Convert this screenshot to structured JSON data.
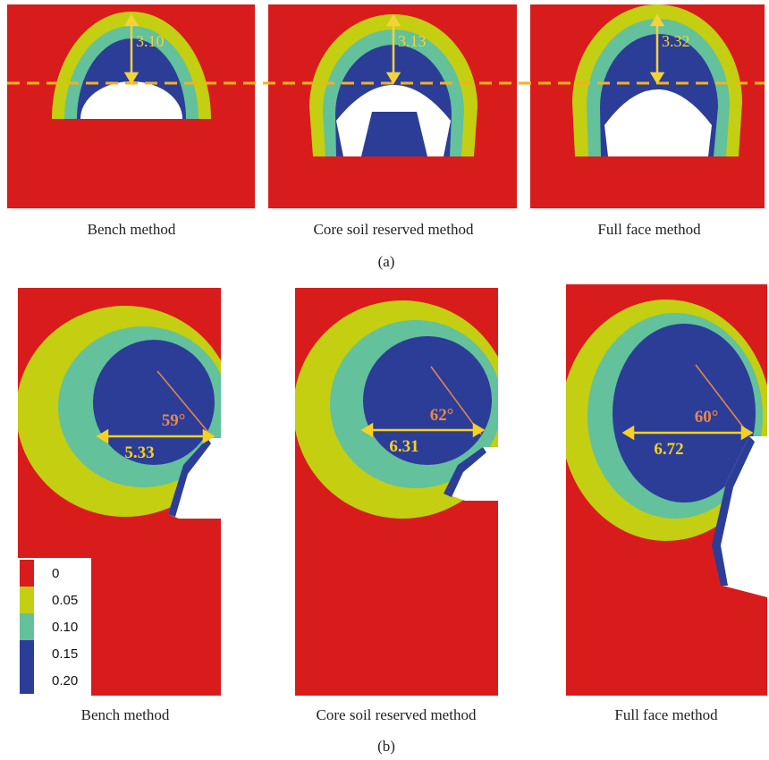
{
  "panel_a": {
    "label": "(a)",
    "images": [
      {
        "caption": "Bench method",
        "measure": "3.10"
      },
      {
        "caption": "Core soil reserved method",
        "measure": "3.13"
      },
      {
        "caption": "Full face method",
        "measure": "3.32"
      }
    ]
  },
  "panel_b": {
    "label": "(b)",
    "images": [
      {
        "caption": "Bench method",
        "angle": "59°",
        "measure": "5.33"
      },
      {
        "caption": "Core soil reserved method",
        "angle": "62°",
        "measure": "6.31"
      },
      {
        "caption": "Full face method",
        "angle": "60°",
        "measure": "6.72"
      }
    ],
    "legend": [
      {
        "label": "0",
        "color": "#d81c1c"
      },
      {
        "label": "0.05",
        "color": "#c3cf10"
      },
      {
        "label": "0.10",
        "color": "#63c19c"
      },
      {
        "label": "0.15",
        "color": "#2c3d98"
      },
      {
        "label": "0.20",
        "color": "#2c3d98"
      }
    ]
  }
}
